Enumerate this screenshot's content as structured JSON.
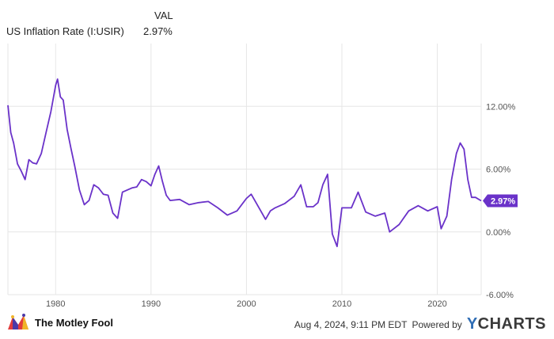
{
  "legend": {
    "header": "VAL",
    "series_name": "US Inflation Rate (I:USIR)",
    "series_value": "2.97%"
  },
  "footer": {
    "brand": "The Motley Fool",
    "timestamp": "Aug 4, 2024, 9:11 PM EDT",
    "powered_by": "Powered by",
    "provider_y": "Y",
    "provider_rest": "CHARTS"
  },
  "colors": {
    "line": "#6a32c9",
    "badge": "#6a32c9",
    "grid": "#e6e6e6",
    "axis_text": "#555555"
  },
  "chart_data": {
    "type": "line",
    "title": "",
    "xlabel": "",
    "ylabel": "",
    "xlim": [
      1975.0,
      2024.6
    ],
    "ylim": [
      -6.0,
      18.0
    ],
    "x_ticks": [
      1980,
      1990,
      2000,
      2010,
      2020
    ],
    "y_ticks": [
      12,
      6,
      0,
      -6
    ],
    "y_tick_labels": [
      "12.00%",
      "6.00%",
      "0.00%",
      "-6.00%"
    ],
    "grid": true,
    "end_label": "2.97%",
    "series": [
      {
        "name": "US Inflation Rate (I:USIR)",
        "x": [
          1975.0,
          1975.3,
          1975.6,
          1976.0,
          1976.4,
          1976.8,
          1977.2,
          1977.6,
          1978.0,
          1978.5,
          1979.0,
          1979.5,
          1980.0,
          1980.2,
          1980.5,
          1980.8,
          1981.2,
          1981.6,
          1982.0,
          1982.5,
          1983.0,
          1983.5,
          1984.0,
          1984.5,
          1985.0,
          1985.5,
          1986.0,
          1986.5,
          1987.0,
          1987.5,
          1988.0,
          1988.5,
          1989.0,
          1989.5,
          1990.0,
          1990.4,
          1990.8,
          1991.2,
          1991.6,
          1992.0,
          1993.0,
          1994.0,
          1995.0,
          1996.0,
          1997.0,
          1998.0,
          1999.0,
          2000.0,
          2000.5,
          2001.0,
          2001.5,
          2002.0,
          2002.5,
          2003.0,
          2004.0,
          2005.0,
          2005.7,
          2006.3,
          2007.0,
          2007.5,
          2008.0,
          2008.5,
          2009.0,
          2009.5,
          2010.0,
          2011.0,
          2011.7,
          2012.5,
          2013.5,
          2014.5,
          2015.0,
          2016.0,
          2017.0,
          2018.0,
          2019.0,
          2020.0,
          2020.4,
          2021.0,
          2021.5,
          2022.0,
          2022.4,
          2022.8,
          2023.2,
          2023.6,
          2024.0,
          2024.6
        ],
        "y": [
          12.1,
          9.5,
          8.5,
          6.5,
          5.8,
          5.0,
          6.9,
          6.6,
          6.5,
          7.5,
          9.5,
          11.5,
          14.0,
          14.6,
          12.9,
          12.6,
          9.8,
          8.0,
          6.3,
          4.0,
          2.6,
          3.0,
          4.5,
          4.2,
          3.6,
          3.5,
          1.8,
          1.3,
          3.8,
          4.0,
          4.2,
          4.3,
          5.0,
          4.8,
          4.4,
          5.5,
          6.3,
          4.8,
          3.5,
          3.0,
          3.1,
          2.6,
          2.8,
          2.9,
          2.3,
          1.6,
          2.0,
          3.2,
          3.6,
          2.8,
          2.0,
          1.2,
          2.0,
          2.3,
          2.7,
          3.4,
          4.5,
          2.4,
          2.4,
          2.8,
          4.5,
          5.5,
          -0.2,
          -1.4,
          2.3,
          2.3,
          3.8,
          1.9,
          1.5,
          1.8,
          0.0,
          0.7,
          2.0,
          2.5,
          2.0,
          2.4,
          0.3,
          1.5,
          5.0,
          7.5,
          8.5,
          7.9,
          5.0,
          3.3,
          3.3,
          2.97
        ]
      }
    ]
  }
}
